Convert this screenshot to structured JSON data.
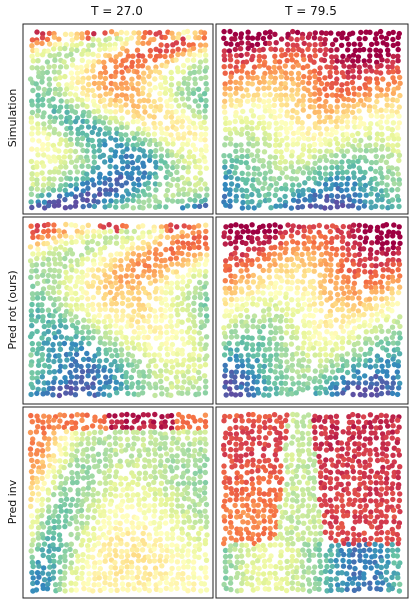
{
  "columns": [
    "T = 27.0",
    "T = 79.5"
  ],
  "rows": [
    "Simulation",
    "Pred rot (ours)",
    "Pred inv"
  ]
}
